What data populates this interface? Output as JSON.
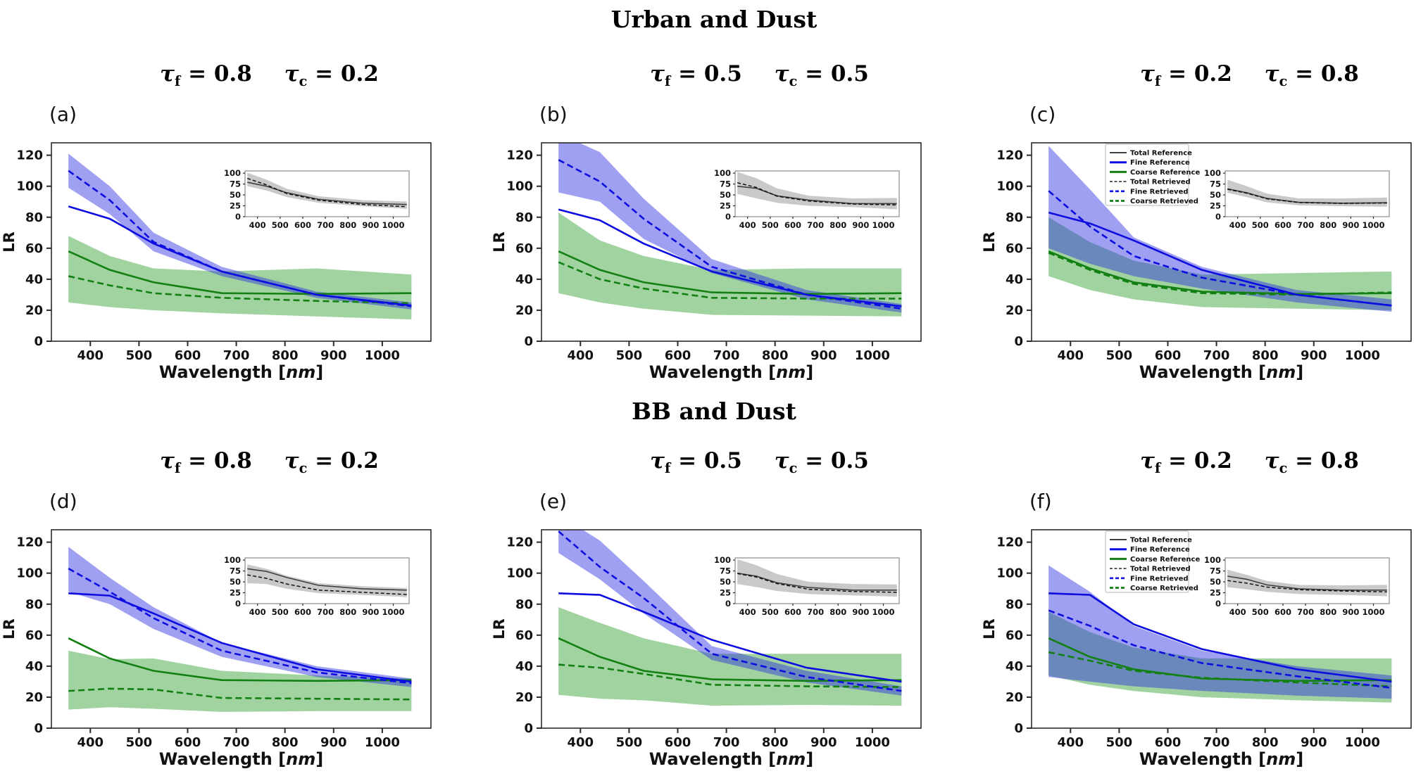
{
  "figure": {
    "row_titles": [
      "Urban and Dust",
      "BB and Dust"
    ],
    "ylabel": "LR",
    "xlabel": {
      "pre": "Wavelength [",
      "italic": "nm",
      "post": "]"
    },
    "x_ticks": [
      400,
      500,
      600,
      700,
      800,
      900,
      1000
    ],
    "y_ticks": [
      0,
      20,
      40,
      60,
      80,
      100,
      120
    ],
    "inset_y_ticks": [
      0,
      25,
      50,
      75,
      100
    ],
    "legend_labels": [
      "Total Reference",
      "Fine Reference",
      "Coarse Reference",
      "Total Retrieved",
      "Fine Retrieved",
      "Coarse Retrieved"
    ],
    "colors": {
      "fine": "#0d0de0",
      "coarse": "#128012",
      "fine_band": "#2a2ce0",
      "coarse_band": "#2f9e2f",
      "total": "#3f3f3f",
      "total_retrieved": "#101010",
      "inset_band": "#888888",
      "axis": "#2a2a2a"
    }
  },
  "chart_data": [
    {
      "id": "a",
      "type": "line",
      "label": "(a)",
      "group": "Urban and Dust",
      "show_legend": false,
      "subtitle": {
        "f": {
          "sym": "τ",
          "sub": "f",
          "val": "= 0.8"
        },
        "c": {
          "sym": "τ",
          "sub": "c",
          "val": "= 0.2"
        }
      },
      "x": [
        355,
        440,
        530,
        670,
        865,
        1060
      ],
      "xlim": [
        320,
        1100
      ],
      "ylim": [
        0,
        128
      ],
      "series": {
        "fine_reference": [
          87,
          79,
          63,
          45,
          30,
          23
        ],
        "fine_retrieved": [
          110,
          91,
          64,
          45,
          30,
          22.5
        ],
        "fine_band_lo": [
          99,
          82,
          58,
          42,
          28,
          20.5
        ],
        "fine_band_hi": [
          121,
          100,
          70,
          48,
          32,
          25
        ],
        "coarse_reference": [
          58,
          46,
          38,
          31,
          30.5,
          31
        ],
        "coarse_retrieved": [
          42,
          36,
          31,
          28,
          26,
          24.5
        ],
        "coarse_band_lo": [
          25,
          22,
          20,
          18,
          16,
          14
        ],
        "coarse_band_hi": [
          68,
          55,
          47,
          45,
          47,
          43
        ]
      },
      "inset": {
        "ylim": [
          0,
          105
        ],
        "total_reference": [
          79,
          70,
          55,
          40,
          31,
          28
        ],
        "total_retrieved": [
          88,
          73,
          53,
          38,
          28,
          23
        ],
        "band_lo": [
          70,
          60,
          45,
          32,
          24,
          18
        ],
        "band_hi": [
          101,
          85,
          64,
          47,
          38,
          35
        ]
      }
    },
    {
      "id": "b",
      "type": "line",
      "label": "(b)",
      "group": "Urban and Dust",
      "show_legend": false,
      "subtitle": {
        "f": {
          "sym": "τ",
          "sub": "f",
          "val": "= 0.5"
        },
        "c": {
          "sym": "τ",
          "sub": "c",
          "val": "= 0.5"
        }
      },
      "x": [
        355,
        440,
        530,
        670,
        865,
        1060
      ],
      "xlim": [
        320,
        1100
      ],
      "ylim": [
        0,
        128
      ],
      "series": {
        "fine_reference": [
          85,
          78,
          63,
          45,
          30,
          22.5
        ],
        "fine_retrieved": [
          117,
          103,
          79,
          48,
          30,
          21
        ],
        "fine_band_lo": [
          96,
          90,
          66,
          44,
          27,
          18.5
        ],
        "fine_band_hi": [
          134,
          122,
          92,
          53,
          33,
          24
        ],
        "coarse_reference": [
          58,
          46,
          38,
          31.5,
          30.5,
          31
        ],
        "coarse_retrieved": [
          51,
          40,
          34,
          28,
          27.5,
          27.5
        ],
        "coarse_band_lo": [
          31,
          25,
          21,
          17,
          16.5,
          16
        ],
        "coarse_band_hi": [
          83,
          65,
          55,
          46,
          47,
          47
        ]
      },
      "inset": {
        "ylim": [
          0,
          105
        ],
        "total_reference": [
          70,
          65,
          48,
          38,
          30,
          30
        ],
        "total_retrieved": [
          78,
          67,
          47,
          36,
          29,
          27
        ],
        "band_lo": [
          52,
          42,
          32,
          25,
          22,
          17
        ],
        "band_hi": [
          103,
          88,
          65,
          48,
          42,
          43
        ]
      }
    },
    {
      "id": "c",
      "type": "line",
      "label": "(c)",
      "group": "Urban and Dust",
      "show_legend": true,
      "subtitle": {
        "f": {
          "sym": "τ",
          "sub": "f",
          "val": "= 0.2"
        },
        "c": {
          "sym": "τ",
          "sub": "c",
          "val": "= 0.8"
        }
      },
      "x": [
        355,
        440,
        530,
        670,
        865,
        1060
      ],
      "xlim": [
        320,
        1100
      ],
      "ylim": [
        0,
        128
      ],
      "series": {
        "fine_reference": [
          83,
          76,
          65,
          46,
          30,
          23
        ],
        "fine_retrieved": [
          97,
          74,
          55,
          41,
          30,
          23
        ],
        "fine_band_lo": [
          60,
          50,
          42,
          34,
          25,
          19
        ],
        "fine_band_hi": [
          126,
          98,
          67,
          48,
          33,
          27
        ],
        "coarse_reference": [
          58,
          47,
          38,
          32,
          30.5,
          31
        ],
        "coarse_retrieved": [
          57,
          46,
          37,
          31,
          30,
          31.5
        ],
        "coarse_band_lo": [
          42,
          33,
          27,
          22,
          21,
          20
        ],
        "coarse_band_hi": [
          80,
          64,
          52,
          43,
          44,
          45
        ]
      },
      "inset": {
        "ylim": [
          0,
          105
        ],
        "total_reference": [
          64,
          55,
          42,
          33,
          31,
          32
        ],
        "total_retrieved": [
          63,
          54,
          41,
          32.5,
          30.5,
          31.5
        ],
        "band_lo": [
          55,
          45,
          33,
          26,
          24,
          23
        ],
        "band_hi": [
          85,
          70,
          53,
          42,
          42,
          44
        ]
      }
    },
    {
      "id": "d",
      "type": "line",
      "label": "(d)",
      "group": "BB and Dust",
      "show_legend": false,
      "subtitle": {
        "f": {
          "sym": "τ",
          "sub": "f",
          "val": "= 0.8"
        },
        "c": {
          "sym": "τ",
          "sub": "c",
          "val": "= 0.2"
        }
      },
      "x": [
        355,
        440,
        530,
        670,
        865,
        1060
      ],
      "xlim": [
        320,
        1100
      ],
      "ylim": [
        0,
        128
      ],
      "series": {
        "fine_reference": [
          87,
          85.5,
          74,
          55,
          38,
          30
        ],
        "fine_retrieved": [
          103,
          88,
          71,
          50,
          36,
          29
        ],
        "fine_band_lo": [
          88,
          80,
          64,
          46,
          33,
          26.5
        ],
        "fine_band_hi": [
          117,
          97,
          78,
          55,
          40,
          32
        ],
        "coarse_reference": [
          58,
          45,
          37,
          31,
          30.5,
          31
        ],
        "coarse_retrieved": [
          24,
          25.5,
          25,
          19.5,
          19,
          18.5
        ],
        "coarse_band_lo": [
          12,
          13.5,
          12.5,
          10.5,
          11,
          11
        ],
        "coarse_band_hi": [
          50,
          44.5,
          45,
          37,
          34,
          32
        ]
      },
      "inset": {
        "ylim": [
          0,
          105
        ],
        "total_reference": [
          80,
          74,
          60,
          42,
          34,
          31
        ],
        "total_retrieved": [
          66,
          58,
          45,
          31,
          26,
          21
        ],
        "band_lo": [
          47,
          45,
          34,
          24,
          20,
          15
        ],
        "band_hi": [
          90,
          80,
          64,
          47,
          40,
          36
        ]
      }
    },
    {
      "id": "e",
      "type": "line",
      "label": "(e)",
      "group": "BB and Dust",
      "show_legend": false,
      "subtitle": {
        "f": {
          "sym": "τ",
          "sub": "f",
          "val": "= 0.5"
        },
        "c": {
          "sym": "τ",
          "sub": "c",
          "val": "= 0.5"
        }
      },
      "x": [
        355,
        440,
        530,
        670,
        865,
        1060
      ],
      "xlim": [
        320,
        1100
      ],
      "ylim": [
        0,
        128
      ],
      "series": {
        "fine_reference": [
          87,
          86,
          75,
          57,
          39,
          30
        ],
        "fine_retrieved": [
          127,
          104,
          84,
          48,
          33,
          24
        ],
        "fine_band_lo": [
          113,
          96,
          74,
          44,
          29.5,
          21
        ],
        "fine_band_hi": [
          138,
          121,
          95,
          53,
          37,
          27
        ],
        "coarse_reference": [
          58,
          46,
          37,
          31.5,
          30.5,
          31
        ],
        "coarse_retrieved": [
          41,
          39,
          35,
          28,
          27,
          26.5
        ],
        "coarse_band_lo": [
          21.5,
          19,
          18,
          14.5,
          15,
          14.5
        ],
        "coarse_band_hi": [
          78,
          68,
          58,
          48,
          48,
          48
        ]
      },
      "inset": {
        "ylim": [
          0,
          105
        ],
        "total_reference": [
          70,
          63,
          48,
          37,
          31,
          31
        ],
        "total_retrieved": [
          69,
          61,
          46,
          33,
          28,
          26
        ],
        "band_lo": [
          45,
          38,
          29,
          22,
          19,
          16
        ],
        "band_hi": [
          102,
          88,
          68,
          50,
          45,
          44
        ]
      }
    },
    {
      "id": "f",
      "type": "line",
      "label": "(f)",
      "group": "BB and Dust",
      "show_legend": true,
      "subtitle": {
        "f": {
          "sym": "τ",
          "sub": "f",
          "val": "= 0.2"
        },
        "c": {
          "sym": "τ",
          "sub": "c",
          "val": "= 0.8"
        }
      },
      "x": [
        355,
        440,
        530,
        670,
        865,
        1060
      ],
      "xlim": [
        320,
        1100
      ],
      "ylim": [
        0,
        128
      ],
      "series": {
        "fine_reference": [
          87,
          86,
          67,
          51,
          38,
          30
        ],
        "fine_retrieved": [
          76,
          66,
          53.5,
          42,
          33.5,
          26
        ],
        "fine_band_lo": [
          33,
          30,
          27,
          24,
          21,
          19
        ],
        "fine_band_hi": [
          105,
          88,
          66,
          50,
          40,
          34
        ],
        "coarse_reference": [
          58,
          46,
          38,
          32,
          30.5,
          31
        ],
        "coarse_retrieved": [
          49,
          43.5,
          37,
          32.5,
          29.5,
          27
        ],
        "coarse_band_lo": [
          34,
          28,
          24,
          20,
          18,
          16.5
        ],
        "coarse_band_hi": [
          75,
          62,
          52,
          45,
          45,
          45
        ]
      },
      "inset": {
        "ylim": [
          0,
          105
        ],
        "total_reference": [
          63,
          56,
          43,
          34,
          31,
          31
        ],
        "total_retrieved": [
          53,
          47,
          38,
          32,
          29,
          27
        ],
        "band_lo": [
          38,
          33,
          27,
          22,
          20,
          17
        ],
        "band_hi": [
          78,
          66,
          52,
          43,
          42,
          43
        ]
      }
    }
  ]
}
